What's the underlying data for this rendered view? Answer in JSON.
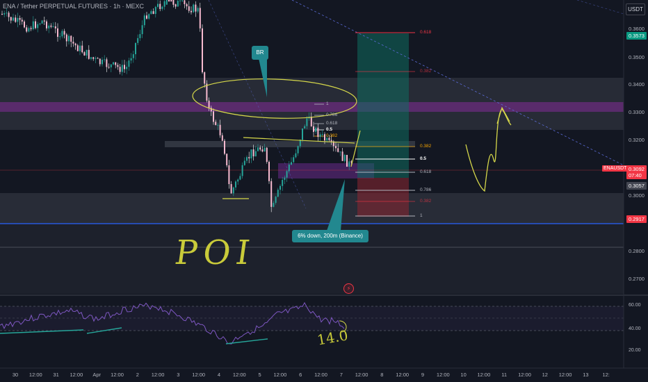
{
  "header": {
    "symbol_title": "ENA / Tether PERPETUAL FUTURES · 1h · MEXC",
    "currency_button": "USDT"
  },
  "price_axis": {
    "labels": [
      "0.3600",
      "0.3500",
      "0.3400",
      "0.3300",
      "0.3200",
      "0.3000",
      "0.2800",
      "0.2700"
    ],
    "current_price": "0.3573",
    "ticker": "ENAUSDT.P",
    "last_price": "0.3092",
    "countdown": "07:40",
    "secondary_price": "0.3057",
    "blue_line_price": "0.2917",
    "colors": {
      "current": "#089981",
      "last": "#f23645",
      "blue": "#2962ff",
      "secondary": "#434651"
    }
  },
  "time_axis": {
    "labels": [
      "30",
      "12:00",
      "31",
      "12:00",
      "Apr",
      "12:00",
      "2",
      "12:00",
      "3",
      "12:00",
      "4",
      "12:00",
      "5",
      "12:00",
      "6",
      "12:00",
      "7",
      "12:00",
      "8",
      "12:00",
      "9",
      "12:00",
      "10",
      "12:00",
      "11",
      "12:00",
      "12",
      "12:00",
      "13",
      "12:"
    ]
  },
  "fib_upper": {
    "levels": [
      "1",
      "0.786",
      "0.618",
      "0.5",
      "0.382"
    ]
  },
  "fib_trade": {
    "levels": [
      "0.618",
      "0.382",
      "0.5",
      "0.618",
      "0.786",
      "1"
    ],
    "dim_labels": [
      "0.618",
      "0.382",
      "0.382"
    ]
  },
  "annotations": {
    "br_label": "BR",
    "callout_text": "6% down, 200m (Binance)",
    "handwritten_poi": "POI",
    "handwritten_rsi": "14.0"
  },
  "rsi": {
    "labels": [
      "60.00",
      "40.00",
      "20.00"
    ]
  },
  "icons": {
    "alert": "lightning-icon"
  }
}
